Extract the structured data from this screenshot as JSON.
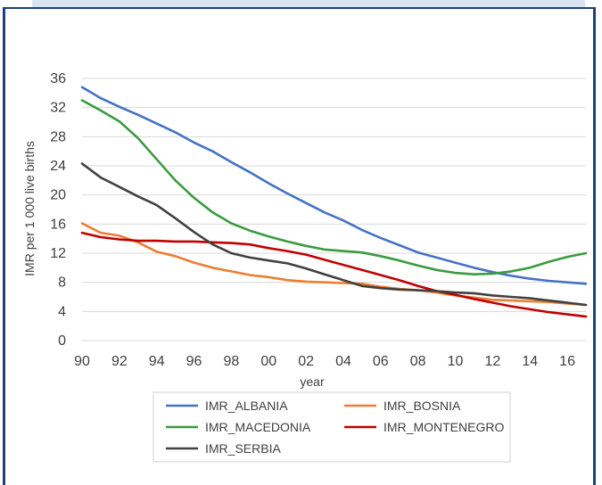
{
  "chart_data": {
    "type": "line",
    "xlabel": "year",
    "ylabel": "IMR per 1 000 live births",
    "x": [
      1990,
      1991,
      1992,
      1993,
      1994,
      1995,
      1996,
      1997,
      1998,
      1999,
      2000,
      2001,
      2002,
      2003,
      2004,
      2005,
      2006,
      2007,
      2008,
      2009,
      2010,
      2011,
      2012,
      2013,
      2014,
      2015,
      2016,
      2017
    ],
    "x_tick_values": [
      1990,
      1992,
      1994,
      1996,
      1998,
      2000,
      2002,
      2004,
      2006,
      2008,
      2010,
      2012,
      2014,
      2016
    ],
    "x_tick_labels": [
      "90",
      "92",
      "94",
      "96",
      "98",
      "00",
      "02",
      "04",
      "06",
      "08",
      "10",
      "12",
      "14",
      "16"
    ],
    "y_ticks": [
      0,
      4,
      8,
      12,
      16,
      20,
      24,
      28,
      32,
      36
    ],
    "xlim": [
      1990,
      2017
    ],
    "ylim": [
      0,
      36
    ],
    "grid": true,
    "legend_position": "bottom",
    "series": [
      {
        "name": "IMR_ALBANIA",
        "color": "#4472c4",
        "values": [
          34.8,
          33.3,
          32.1,
          31.0,
          29.8,
          28.6,
          27.2,
          26.0,
          24.5,
          23.1,
          21.6,
          20.2,
          18.9,
          17.6,
          16.5,
          15.2,
          14.1,
          13.1,
          12.1,
          11.4,
          10.7,
          10.0,
          9.4,
          8.9,
          8.5,
          8.2,
          8.0,
          7.8
        ]
      },
      {
        "name": "IMR_BOSNIA",
        "color": "#ed7d31",
        "values": [
          16.1,
          14.8,
          14.4,
          13.5,
          12.2,
          11.6,
          10.7,
          10.0,
          9.5,
          9.0,
          8.7,
          8.3,
          8.1,
          8.0,
          7.9,
          7.8,
          7.4,
          7.1,
          6.9,
          6.6,
          6.2,
          5.9,
          5.6,
          5.5,
          5.4,
          5.3,
          5.1,
          4.9
        ]
      },
      {
        "name": "IMR_MACEDONIA",
        "color": "#3a9b3f",
        "values": [
          33.0,
          31.6,
          30.1,
          27.8,
          24.9,
          22.0,
          19.6,
          17.6,
          16.1,
          15.1,
          14.3,
          13.6,
          13.0,
          12.5,
          12.3,
          12.1,
          11.6,
          11.0,
          10.3,
          9.7,
          9.3,
          9.1,
          9.2,
          9.5,
          10.0,
          10.8,
          11.5,
          12.0
        ]
      },
      {
        "name": "IMR_MONTENEGRO",
        "color": "#c00000",
        "values": [
          14.8,
          14.2,
          13.9,
          13.7,
          13.7,
          13.6,
          13.6,
          13.5,
          13.4,
          13.2,
          12.7,
          12.3,
          11.8,
          11.1,
          10.4,
          9.7,
          9.0,
          8.3,
          7.5,
          6.8,
          6.3,
          5.7,
          5.2,
          4.7,
          4.3,
          3.9,
          3.6,
          3.3
        ]
      },
      {
        "name": "IMR_SERBIA",
        "color": "#404040",
        "values": [
          24.3,
          22.4,
          21.1,
          19.8,
          18.6,
          16.8,
          14.9,
          13.2,
          12.0,
          11.4,
          11.0,
          10.6,
          9.9,
          9.1,
          8.3,
          7.5,
          7.2,
          7.0,
          6.9,
          6.8,
          6.6,
          6.5,
          6.2,
          6.0,
          5.8,
          5.5,
          5.2,
          4.9
        ]
      }
    ]
  }
}
